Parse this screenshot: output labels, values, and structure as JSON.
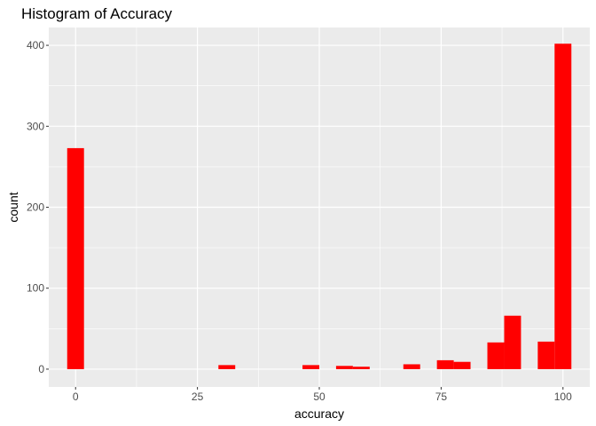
{
  "chart_data": {
    "type": "bar",
    "title": "Histogram of Accuracy",
    "xlabel": "accuracy",
    "ylabel": "count",
    "xlim": [
      -5.5,
      105.5
    ],
    "ylim": [
      -22,
      422
    ],
    "xticks": [
      0,
      25,
      50,
      75,
      100
    ],
    "xtick_labels": [
      "0",
      "25",
      "50",
      "75",
      "100"
    ],
    "yticks": [
      0,
      100,
      200,
      300,
      400
    ],
    "ytick_labels": [
      "0",
      "100",
      "200",
      "300",
      "400"
    ],
    "bin_width": 3.448,
    "bins": [
      {
        "x": 0.0,
        "count": 273
      },
      {
        "x": 31.03,
        "count": 5
      },
      {
        "x": 48.28,
        "count": 5
      },
      {
        "x": 55.17,
        "count": 4
      },
      {
        "x": 58.62,
        "count": 3
      },
      {
        "x": 68.97,
        "count": 6
      },
      {
        "x": 75.86,
        "count": 11
      },
      {
        "x": 79.31,
        "count": 9
      },
      {
        "x": 86.21,
        "count": 33
      },
      {
        "x": 89.66,
        "count": 66
      },
      {
        "x": 96.55,
        "count": 34
      },
      {
        "x": 100.0,
        "count": 402
      }
    ],
    "grid": true,
    "bar_color": "#FF0000",
    "panel_background": "#EBEBEB",
    "grid_color": "#FFFFFF"
  }
}
